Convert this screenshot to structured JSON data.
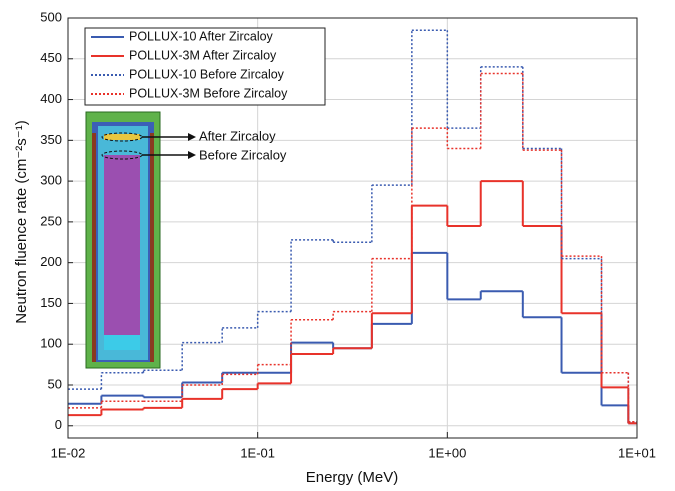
{
  "chart_data": {
    "type": "histogram",
    "x_label": "Energy (MeV)",
    "y_label": "Neutron fluence rate (cm⁻²s⁻¹)",
    "log_x": true,
    "grid": true,
    "legend_position": "upper left",
    "bins": [
      0.01,
      0.015,
      0.025,
      0.04,
      0.065,
      0.1,
      0.15,
      0.25,
      0.4,
      0.65,
      1.0,
      1.5,
      2.5,
      4.0,
      6.5,
      9.0,
      10.0
    ],
    "series": [
      {
        "name": "POLLUX-10 After Zircaloy",
        "color": "#3a5bb0",
        "linestyle": "solid",
        "values": [
          27,
          37,
          35,
          53,
          65,
          65,
          102,
          95,
          125,
          212,
          155,
          165,
          133,
          65,
          25,
          3
        ]
      },
      {
        "name": "POLLUX-3M After Zircaloy",
        "color": "#e8322a",
        "linestyle": "solid",
        "values": [
          13,
          20,
          22,
          33,
          45,
          52,
          88,
          95,
          138,
          270,
          245,
          300,
          245,
          138,
          47,
          3
        ]
      },
      {
        "name": "POLLUX-10 Before Zircaloy",
        "color": "#3a5bb0",
        "linestyle": "dotted",
        "values": [
          45,
          65,
          68,
          102,
          120,
          140,
          228,
          225,
          295,
          485,
          365,
          440,
          340,
          205,
          65,
          5
        ]
      },
      {
        "name": "POLLUX-3M Before Zircaloy",
        "color": "#e8322a",
        "linestyle": "dotted",
        "values": [
          22,
          30,
          30,
          50,
          63,
          75,
          130,
          140,
          205,
          365,
          340,
          432,
          338,
          208,
          65,
          5
        ]
      }
    ],
    "xlim": [
      0.01,
      10
    ],
    "xticks": [
      {
        "value": 0.01,
        "label": "1E-02"
      },
      {
        "value": 0.1,
        "label": "1E-01"
      },
      {
        "value": 1,
        "label": "1E+00"
      },
      {
        "value": 10,
        "label": "1E+01"
      }
    ],
    "ylim": [
      -15,
      500
    ],
    "yticks": [
      0,
      50,
      100,
      150,
      200,
      250,
      300,
      350,
      400,
      450,
      500
    ],
    "annotations": [
      "After Zircaloy",
      "Before Zircaloy"
    ]
  }
}
